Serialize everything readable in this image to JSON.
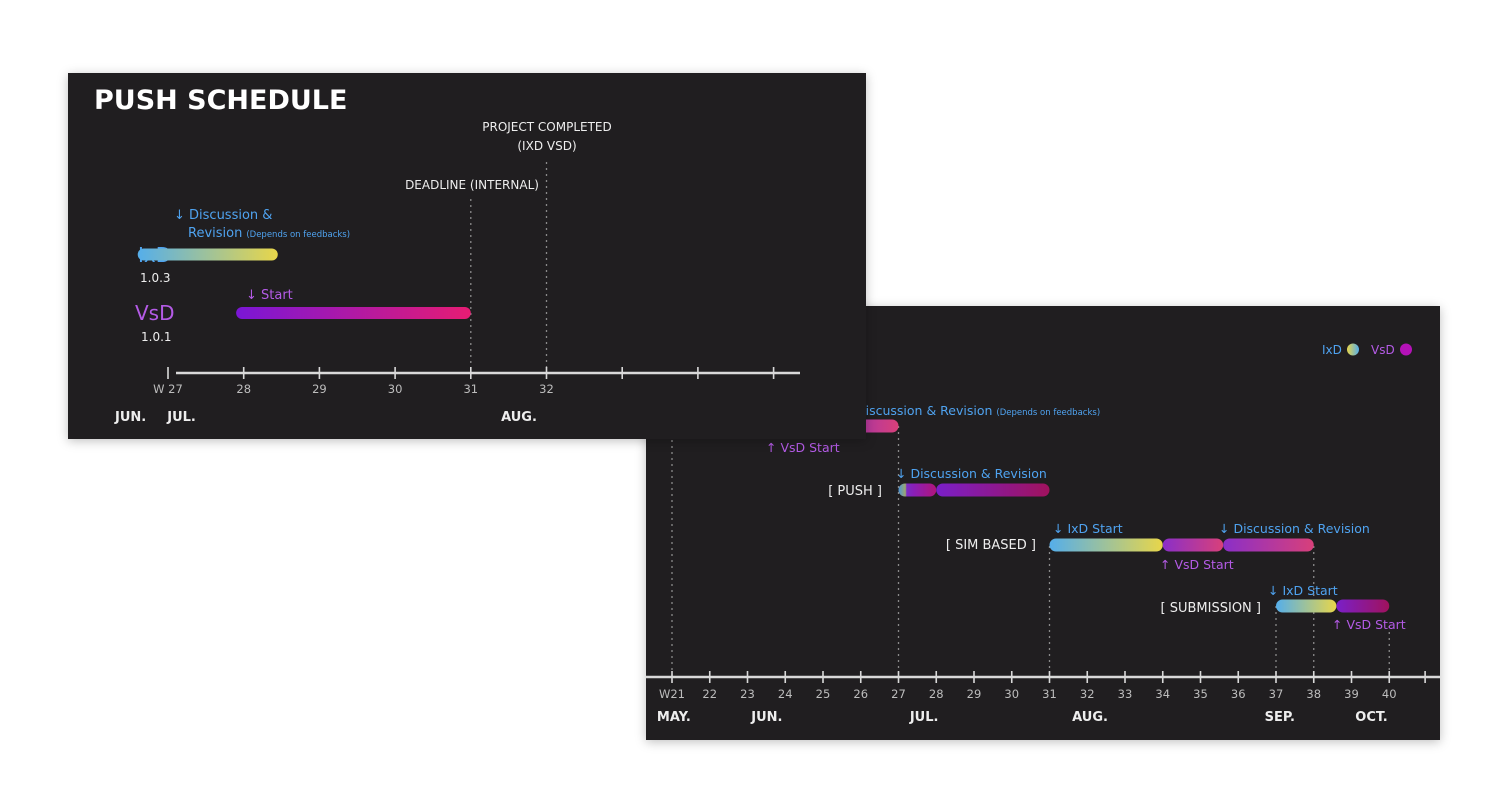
{
  "colors": {
    "background": "#201e20",
    "ixd": "#4fa3f0",
    "vsd": "#b45be6",
    "label": "#e8e8e8",
    "axis": "#d9d9d9",
    "guide": "#8a8a8a",
    "ixd_gradient": [
      "#55aeea",
      "#e8d64a"
    ],
    "vsd_gradient": [
      "#7a16d6",
      "#e61c73"
    ],
    "vsd_dark_gradient": [
      "#7a1fc8",
      "#a0125d"
    ]
  },
  "front": {
    "title": "PUSH SCHEDULE",
    "deadline_label": "DEADLINE (INTERNAL)",
    "completed_label_1": "PROJECT COMPLETED",
    "completed_label_2": "(IXD VSD)",
    "ixd_name": "IxD",
    "ixd_version": "1.0.3",
    "vsd_name": "VsD",
    "vsd_version": "1.0.1",
    "ixd_note_1": "↓ Discussion &",
    "ixd_note_2": "Revision",
    "ixd_note_small": "(Depends on feedbacks)",
    "vsd_note": "↓ Start",
    "months": [
      {
        "label": "JUN.",
        "week": 26.3
      },
      {
        "label": "JUL.",
        "week": 26.99
      },
      {
        "label": "AUG.",
        "week": 31.4
      }
    ]
  },
  "back": {
    "legend_ixd": "IxD",
    "legend_vsd": "VsD",
    "rows": {
      "first_note": "Discussion & Revision",
      "first_note_small": "(Depends on feedbacks)",
      "first_vsd_note": "↑ VsD Start",
      "push_label": "[ PUSH ]",
      "push_note": "↓ Discussion & Revision",
      "sim_label": "[ SIM BASED ]",
      "sim_ixd_note": "↓ IxD Start",
      "sim_disc_note": "↓ Discussion & Revision",
      "sim_vsd_note": "↑ VsD Start",
      "sub_label": "[ SUBMISSION ]",
      "sub_ixd_note": "↓ IxD Start",
      "sub_vsd_note": "↑ VsD Start"
    },
    "months": [
      {
        "label": "MAY.",
        "week": 20.6
      },
      {
        "label": "JUN.",
        "week": 23.1
      },
      {
        "label": "JUL.",
        "week": 27.3
      },
      {
        "label": "AUG.",
        "week": 31.6
      },
      {
        "label": "SEP.",
        "week": 36.7
      },
      {
        "label": "OCT.",
        "week": 39.1
      }
    ]
  },
  "chart_data": [
    {
      "type": "gantt",
      "title": "PUSH SCHEDULE",
      "x_unit": "week",
      "x_range": [
        27,
        35
      ],
      "tick_labels": [
        "W 27",
        "28",
        "29",
        "30",
        "31",
        "32",
        "",
        "",
        ""
      ],
      "ticks": [
        27,
        28,
        29,
        30,
        31,
        32,
        33,
        34,
        35
      ],
      "milestones": [
        {
          "label": "DEADLINE (INTERNAL)",
          "week": 31
        },
        {
          "label": "PROJECT COMPLETED (IXD VSD)",
          "week": 32
        }
      ],
      "tasks": [
        {
          "track": "IxD",
          "version": "1.0.3",
          "start": 26.6,
          "end": 28.45,
          "note": "Discussion & Revision (Depends on feedbacks)"
        },
        {
          "track": "VsD",
          "version": "1.0.1",
          "start": 27.9,
          "end": 31.0,
          "note": "Start"
        }
      ]
    },
    {
      "type": "gantt",
      "x_unit": "week",
      "x_range": [
        21,
        40
      ],
      "tick_labels": [
        "W21",
        "22",
        "23",
        "24",
        "25",
        "26",
        "27",
        "28",
        "29",
        "30",
        "31",
        "32",
        "33",
        "34",
        "35",
        "36",
        "37",
        "38",
        "39",
        "40"
      ],
      "ticks": [
        21,
        22,
        23,
        24,
        25,
        26,
        27,
        28,
        29,
        30,
        31,
        32,
        33,
        34,
        35,
        36,
        37,
        38,
        39,
        40
      ],
      "legend": [
        "IxD",
        "VsD"
      ],
      "tasks": [
        {
          "phase": "",
          "track": "VsD",
          "start": 25.0,
          "end": 27.0,
          "note": "Discussion & Revision (Depends on feedbacks)"
        },
        {
          "phase": "PUSH",
          "track": "IxD",
          "start": 27.0,
          "end": 28.0
        },
        {
          "phase": "PUSH",
          "track": "VsD",
          "start": 28.0,
          "end": 31.0,
          "note": "Discussion & Revision"
        },
        {
          "phase": "SIM BASED",
          "track": "IxD",
          "start": 31.0,
          "end": 34.0,
          "note": "IxD Start"
        },
        {
          "phase": "SIM BASED",
          "track": "VsD",
          "start": 34.0,
          "end": 35.6,
          "note": "VsD Start"
        },
        {
          "phase": "SIM BASED",
          "track": "VsD",
          "start": 35.6,
          "end": 38.0,
          "note": "Discussion & Revision"
        },
        {
          "phase": "SUBMISSION",
          "track": "IxD",
          "start": 37.0,
          "end": 38.6,
          "note": "IxD Start"
        },
        {
          "phase": "SUBMISSION",
          "track": "VsD",
          "start": 38.6,
          "end": 40.0,
          "note": "VsD Start"
        }
      ]
    }
  ]
}
